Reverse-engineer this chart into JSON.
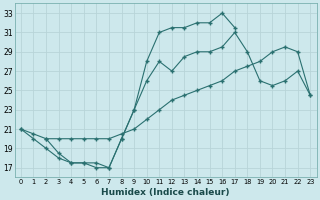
{
  "xlabel": "Humidex (Indice chaleur)",
  "background_color": "#cde8ec",
  "grid_color": "#b8d4d8",
  "line_color": "#2a7070",
  "xlim": [
    -0.5,
    23.5
  ],
  "ylim": [
    16.0,
    34.0
  ],
  "yticks": [
    17,
    19,
    21,
    23,
    25,
    27,
    29,
    31,
    33
  ],
  "xticks": [
    0,
    1,
    2,
    3,
    4,
    5,
    6,
    7,
    8,
    9,
    10,
    11,
    12,
    13,
    14,
    15,
    16,
    17,
    18,
    19,
    20,
    21,
    22,
    23
  ],
  "line1_x": [
    0,
    1,
    2,
    3,
    4,
    5,
    6,
    7,
    8,
    9,
    10,
    11,
    12,
    13,
    14,
    15,
    16,
    17
  ],
  "line1_y": [
    21,
    20,
    19,
    18,
    17.5,
    17.5,
    17,
    17,
    20,
    23,
    28,
    31,
    31.5,
    31.5,
    32,
    32,
    33,
    31.5
  ],
  "line2_x": [
    0,
    1,
    2,
    3,
    4,
    5,
    6,
    7,
    8,
    9,
    10,
    11,
    12,
    13,
    14,
    15,
    16,
    17,
    18,
    19,
    20,
    21,
    22,
    23
  ],
  "line2_y": [
    21,
    20.5,
    20,
    20,
    20,
    20,
    20,
    20,
    20.5,
    21,
    22,
    23,
    24,
    24.5,
    25,
    25.5,
    26,
    27,
    27.5,
    28,
    29,
    29.5,
    29,
    24.5
  ],
  "line3_x": [
    2,
    3,
    4,
    5,
    6,
    7,
    8,
    9,
    10,
    11,
    12,
    13,
    14,
    15,
    16,
    17,
    18,
    19,
    20,
    21,
    22,
    23
  ],
  "line3_y": [
    20,
    18.5,
    17.5,
    17.5,
    17.5,
    17,
    20,
    23,
    26,
    28,
    27,
    28.5,
    29,
    29,
    29.5,
    31,
    29,
    26,
    25.5,
    26,
    27,
    24.5
  ]
}
